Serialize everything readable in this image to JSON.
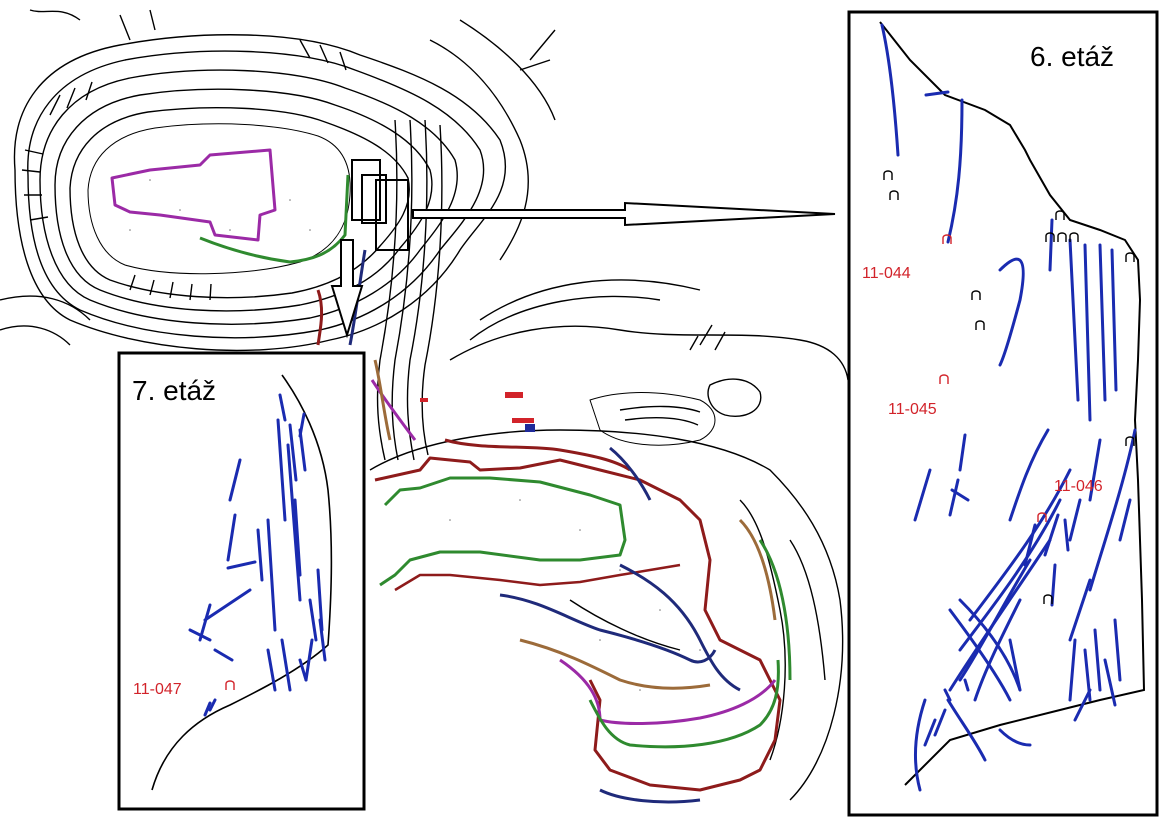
{
  "panels": {
    "level6": {
      "title": "6. etáž"
    },
    "level7": {
      "title": "7. etáž"
    }
  },
  "samples": {
    "s044": "11-044",
    "s045": "11-045",
    "s046": "11-046",
    "s047": "11-047"
  },
  "colors": {
    "fracture": "#1a2bb0",
    "label": "#d2232a",
    "bench_purple": "#9b2aa6",
    "bench_green": "#2f8a2f",
    "bench_red": "#8e1b1b",
    "bench_navy": "#1f2a7a",
    "bench_brown": "#9c6b3a",
    "contour": "#000000"
  }
}
